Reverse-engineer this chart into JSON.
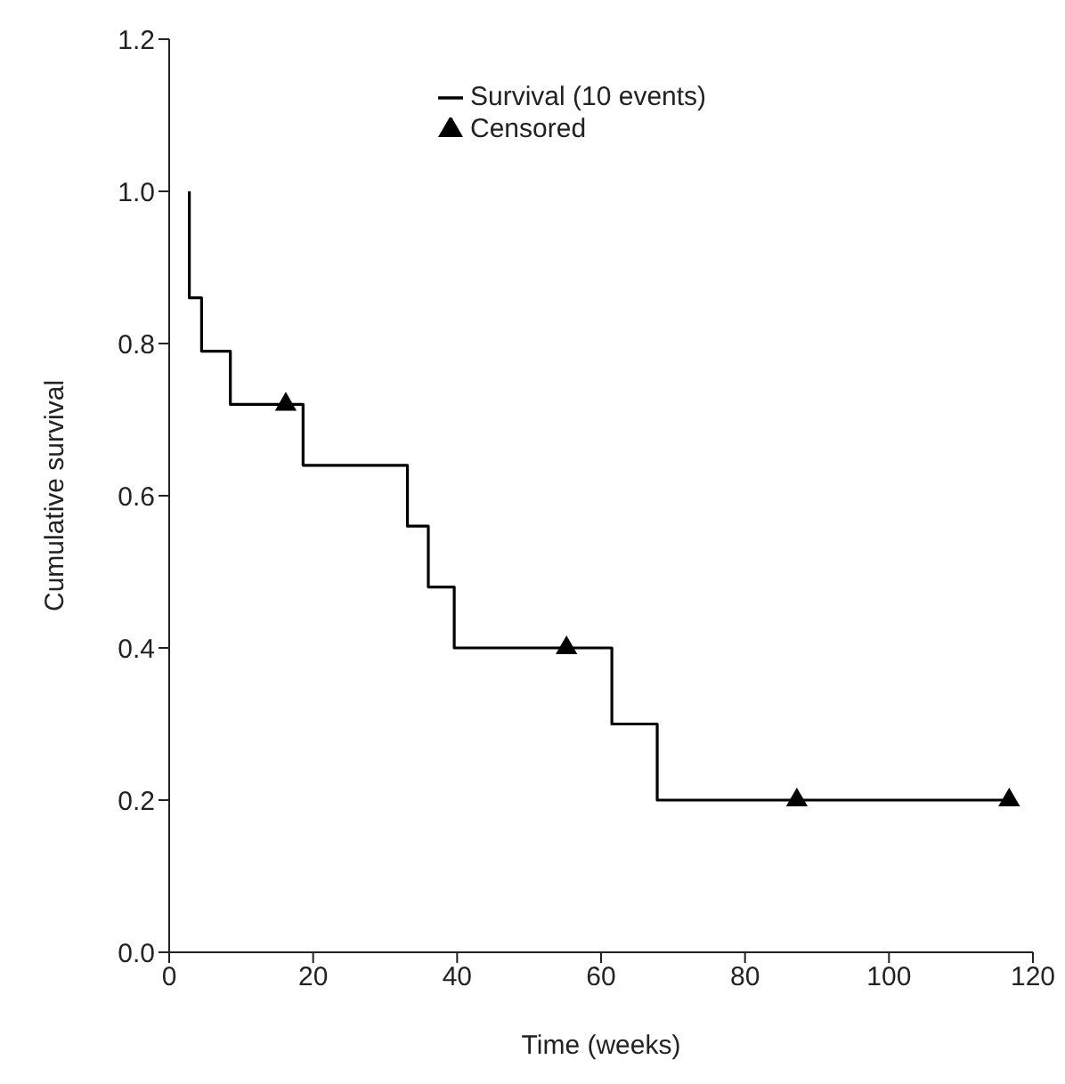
{
  "chart_data": {
    "type": "step",
    "xlabel": "Time (weeks)",
    "ylabel": "Cumulative survival",
    "xlim": [
      0,
      120
    ],
    "xticks": [
      0,
      20,
      40,
      60,
      80,
      100,
      120
    ],
    "ylim": [
      0,
      1.2
    ],
    "yticks": [
      {
        "value": 0,
        "label": "0.0"
      },
      {
        "value": 0.2,
        "label": "0.2"
      },
      {
        "value": 0.4,
        "label": "0.4"
      },
      {
        "value": 0.6,
        "label": "0.6"
      },
      {
        "value": 0.8,
        "label": "0.8"
      },
      {
        "value": 1,
        "label": "1.0"
      },
      {
        "value": 1.2,
        "label": "1.2"
      }
    ],
    "grid": false,
    "legend": "top right",
    "series": [
      {
        "name": "Survival (10 events)",
        "color": "#000000",
        "marker": "none",
        "x": [
          2.8,
          2.8,
          4.5,
          8.5,
          18.6,
          33.1,
          36,
          39.6,
          61.5,
          67.8,
          116.7
        ],
        "values": [
          1,
          0.86,
          0.79,
          0.72,
          0.64,
          0.56,
          0.48,
          0.4,
          0.3,
          0.2,
          0.2
        ]
      },
      {
        "name": "Censored",
        "type": "scatter",
        "color": "#000000",
        "marker": "triangle",
        "x": [
          16.2,
          55.2,
          87.2,
          116.7
        ],
        "values": [
          0.72,
          0.4,
          0.2,
          0.2
        ]
      }
    ]
  }
}
